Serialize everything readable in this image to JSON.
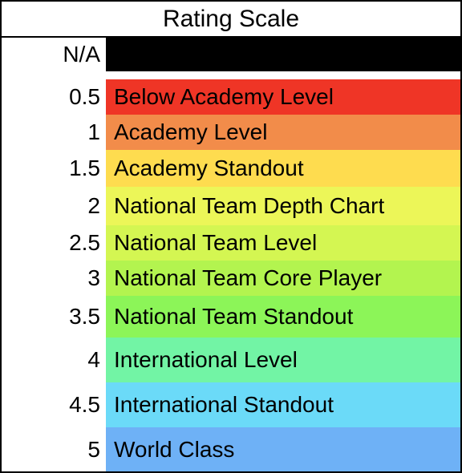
{
  "header": {
    "title": "Rating Scale"
  },
  "rows": [
    {
      "score": "N/A",
      "label": "",
      "color": "#000000"
    },
    {
      "score": "0.5",
      "label": "Below Academy Level",
      "color": "#ef3526"
    },
    {
      "score": "1",
      "label": "Academy Level",
      "color": "#f28c4a"
    },
    {
      "score": "1.5",
      "label": "Academy Standout",
      "color": "#fedc4f"
    },
    {
      "score": "2",
      "label": "National Team Depth Chart",
      "color": "#ecf658"
    },
    {
      "score": "2.5",
      "label": "National Team Level",
      "color": "#d4f652"
    },
    {
      "score": "3",
      "label": "National Team Core Player",
      "color": "#b3f44f"
    },
    {
      "score": "3.5",
      "label": "National Team Standout",
      "color": "#8cf558"
    },
    {
      "score": "4",
      "label": "International Level",
      "color": "#72f4a5"
    },
    {
      "score": "4.5",
      "label": "International Standout",
      "color": "#6bdaf8"
    },
    {
      "score": "5",
      "label": "World Class",
      "color": "#6eb1f6"
    }
  ]
}
